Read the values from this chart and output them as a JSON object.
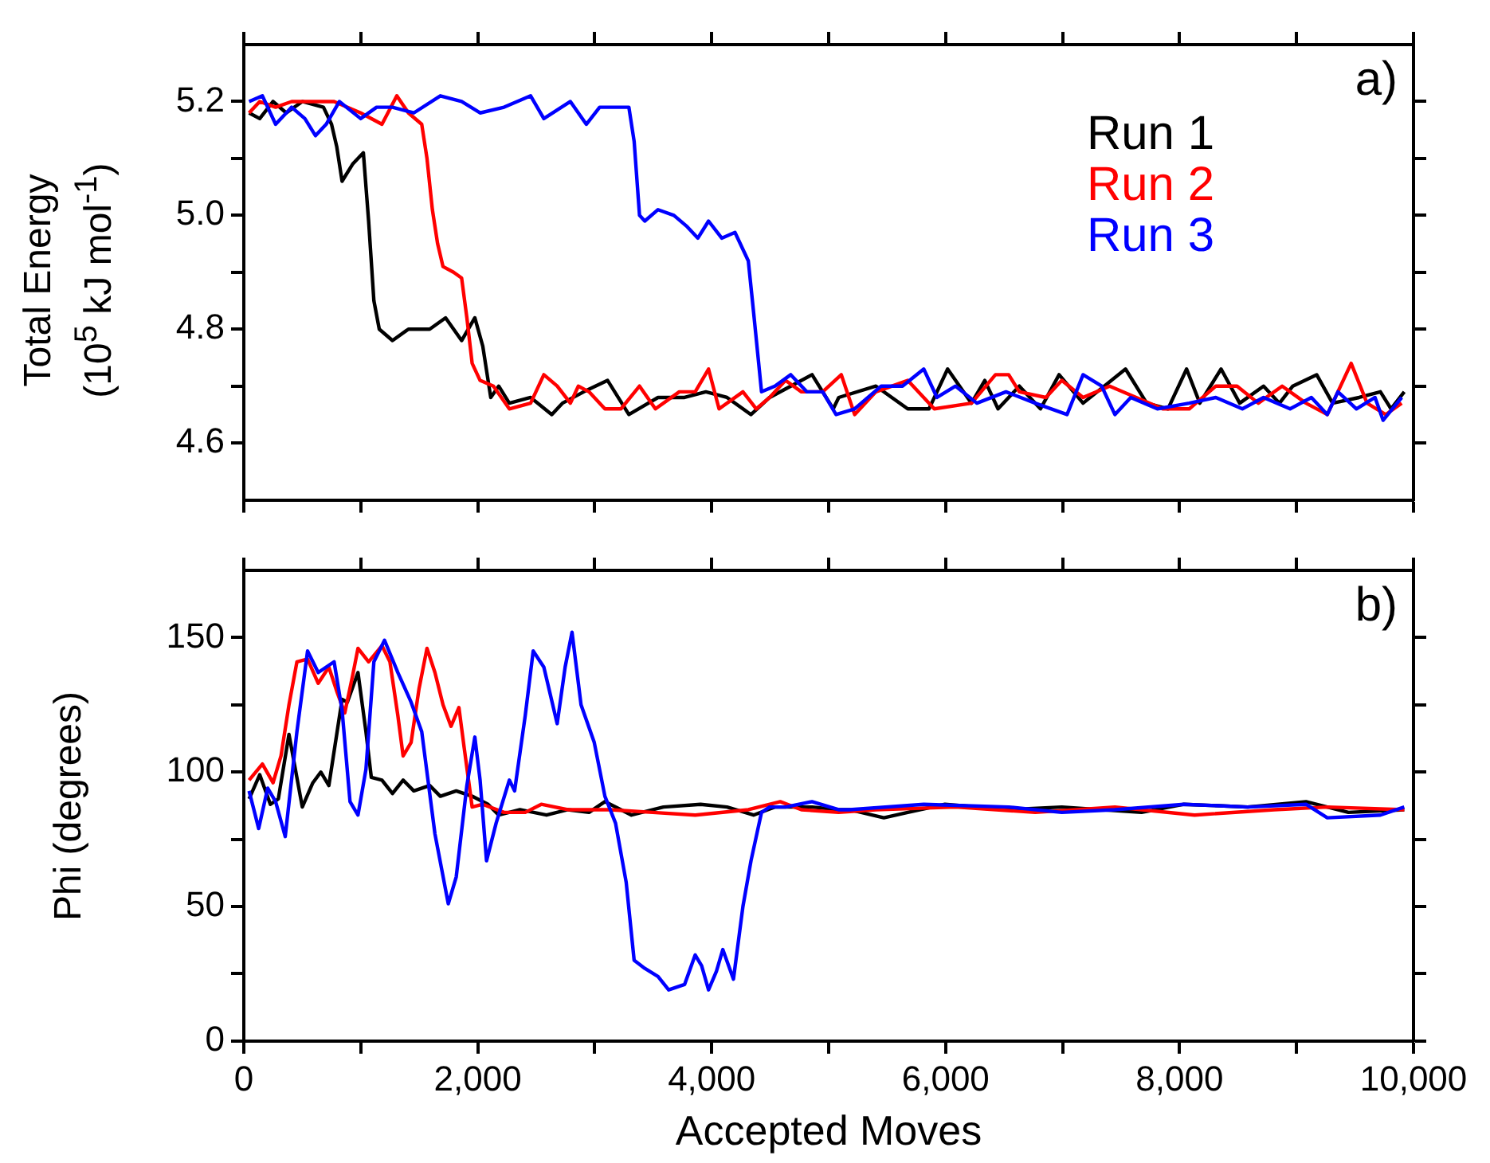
{
  "chart_data": [
    {
      "type": "line",
      "ylabel": "Total Energy\n(10$^{5}$ kJ mol$^{-1}$)",
      "annotations": [
        "a)"
      ],
      "legend": "top right",
      "marker": "none",
      "line_style": "solid",
      "grid": false,
      "tick_labels": "y",
      "xlim": [
        0,
        10000
      ],
      "xticks": [
        {
          "value": 0,
          "label": null
        },
        {
          "value": 1000,
          "label": null
        },
        {
          "value": 2000,
          "label": null
        },
        {
          "value": 3000,
          "label": null
        },
        {
          "value": 4000,
          "label": null
        },
        {
          "value": 5000,
          "label": null
        },
        {
          "value": 6000,
          "label": null
        },
        {
          "value": 7000,
          "label": null
        },
        {
          "value": 8000,
          "label": null
        },
        {
          "value": 9000,
          "label": null
        },
        {
          "value": 10000,
          "label": null
        }
      ],
      "ylim": [
        4.5,
        5.3
      ],
      "yticks": [
        4.6,
        {
          "value": 4.7,
          "label": null
        },
        4.8,
        {
          "value": 4.9,
          "label": null
        },
        {
          "value": 5,
          "label": "5.0"
        },
        {
          "value": 5.1,
          "label": null
        },
        5.2
      ],
      "series": [
        {
          "name": "Run 1",
          "color": "#000000",
          "x": [
            45,
            136,
            250,
            363,
            500,
            681,
            750,
            795,
            840,
            930,
            1022,
            1067,
            1112,
            1158,
            1271,
            1407,
            1589,
            1725,
            1862,
            1975,
            2043,
            2111,
            2179,
            2270,
            2452,
            2633,
            2724,
            2906,
            3110,
            3292,
            3541,
            3768,
            3950,
            4131,
            4336,
            4495,
            4676,
            4858,
            5039,
            5086,
            5404,
            5676,
            5858,
            6017,
            6221,
            6335,
            6448,
            6630,
            6811,
            6970,
            7175,
            7538,
            7719,
            7901,
            8060,
            8173,
            8355,
            8514,
            8718,
            8854,
            8968,
            9172,
            9308,
            9535,
            9717,
            9808,
            9921
          ],
          "values": [
            5.18,
            5.17,
            5.2,
            5.18,
            5.2,
            5.19,
            5.16,
            5.12,
            5.06,
            5.09,
            5.11,
            4.99,
            4.85,
            4.8,
            4.78,
            4.8,
            4.8,
            4.82,
            4.78,
            4.82,
            4.77,
            4.68,
            4.7,
            4.67,
            4.68,
            4.65,
            4.67,
            4.69,
            4.71,
            4.65,
            4.68,
            4.68,
            4.69,
            4.68,
            4.65,
            4.68,
            4.7,
            4.72,
            4.66,
            4.68,
            4.7,
            4.66,
            4.66,
            4.73,
            4.67,
            4.71,
            4.66,
            4.7,
            4.66,
            4.72,
            4.67,
            4.73,
            4.67,
            4.66,
            4.73,
            4.67,
            4.73,
            4.67,
            4.7,
            4.67,
            4.7,
            4.72,
            4.67,
            4.68,
            4.69,
            4.66,
            4.69
          ]
        },
        {
          "name": "Run 2",
          "color": "#ff0000",
          "x": [
            45,
            136,
            272,
            409,
            636,
            772,
            999,
            1181,
            1308,
            1407,
            1521,
            1566,
            1612,
            1657,
            1703,
            1793,
            1862,
            1907,
            1952,
            2020,
            2134,
            2270,
            2452,
            2565,
            2679,
            2792,
            2860,
            2951,
            3087,
            3224,
            3383,
            3519,
            3723,
            3859,
            3973,
            4063,
            4267,
            4381,
            4495,
            4631,
            4767,
            4949,
            5108,
            5222,
            5404,
            5676,
            5903,
            6221,
            6426,
            6539,
            6630,
            6857,
            6993,
            7175,
            7402,
            7629,
            7856,
            8083,
            8310,
            8491,
            8673,
            8877,
            9081,
            9263,
            9467,
            9603,
            9762,
            9899
          ],
          "values": [
            5.18,
            5.2,
            5.19,
            5.2,
            5.2,
            5.2,
            5.18,
            5.16,
            5.21,
            5.18,
            5.16,
            5.1,
            5.01,
            4.95,
            4.91,
            4.9,
            4.89,
            4.82,
            4.74,
            4.71,
            4.7,
            4.66,
            4.67,
            4.72,
            4.7,
            4.67,
            4.7,
            4.69,
            4.66,
            4.66,
            4.7,
            4.66,
            4.69,
            4.69,
            4.73,
            4.66,
            4.69,
            4.66,
            4.68,
            4.71,
            4.69,
            4.69,
            4.72,
            4.65,
            4.69,
            4.71,
            4.66,
            4.67,
            4.72,
            4.72,
            4.69,
            4.68,
            4.71,
            4.68,
            4.7,
            4.68,
            4.66,
            4.66,
            4.7,
            4.7,
            4.67,
            4.7,
            4.67,
            4.65,
            4.74,
            4.67,
            4.65,
            4.67
          ]
        },
        {
          "name": "Run 3",
          "color": "#0000ff",
          "x": [
            45,
            159,
            272,
            409,
            522,
            613,
            704,
            817,
            999,
            1135,
            1271,
            1453,
            1680,
            1862,
            2020,
            2225,
            2452,
            2565,
            2792,
            2928,
            3042,
            3178,
            3292,
            3337,
            3383,
            3428,
            3541,
            3677,
            3791,
            3882,
            3973,
            4086,
            4199,
            4313,
            4358,
            4426,
            4540,
            4676,
            4813,
            4949,
            5063,
            5222,
            5449,
            5631,
            5813,
            5926,
            6085,
            6267,
            6516,
            6766,
            7038,
            7175,
            7334,
            7447,
            7583,
            7810,
            8083,
            8310,
            8537,
            8718,
            8945,
            9127,
            9263,
            9354,
            9512,
            9671,
            9740,
            9899
          ],
          "values": [
            5.2,
            5.21,
            5.16,
            5.19,
            5.17,
            5.14,
            5.16,
            5.2,
            5.17,
            5.19,
            5.19,
            5.18,
            5.21,
            5.2,
            5.18,
            5.19,
            5.21,
            5.17,
            5.2,
            5.16,
            5.19,
            5.19,
            5.19,
            5.13,
            5,
            4.99,
            5.01,
            5,
            4.98,
            4.96,
            4.99,
            4.96,
            4.97,
            4.92,
            4.83,
            4.69,
            4.7,
            4.72,
            4.69,
            4.69,
            4.65,
            4.66,
            4.7,
            4.7,
            4.73,
            4.68,
            4.7,
            4.67,
            4.69,
            4.67,
            4.65,
            4.72,
            4.7,
            4.65,
            4.68,
            4.66,
            4.67,
            4.68,
            4.66,
            4.68,
            4.66,
            4.68,
            4.65,
            4.69,
            4.66,
            4.68,
            4.64,
            4.68
          ]
        }
      ]
    },
    {
      "type": "line",
      "xlabel": "Accepted Moves",
      "ylabel": "Phi (degrees)",
      "annotations": [
        "b)"
      ],
      "marker": "none",
      "line_style": "solid",
      "grid": false,
      "xlim": [
        0,
        10000
      ],
      "xticks": [
        0,
        {
          "value": 1000,
          "label": null
        },
        {
          "value": 2000,
          "label": "2,000"
        },
        {
          "value": 3000,
          "label": null
        },
        {
          "value": 4000,
          "label": "4,000"
        },
        {
          "value": 5000,
          "label": null
        },
        {
          "value": 6000,
          "label": "6,000"
        },
        {
          "value": 7000,
          "label": null
        },
        {
          "value": 8000,
          "label": "8,000"
        },
        {
          "value": 9000,
          "label": null
        },
        {
          "value": 10000,
          "label": "10,000"
        }
      ],
      "ylim": [
        0,
        175
      ],
      "yticks": [
        0,
        {
          "value": 25,
          "label": null
        },
        50,
        {
          "value": 75,
          "label": null
        },
        100,
        {
          "value": 125,
          "label": null
        },
        150
      ],
      "series": [
        {
          "color": "#000000",
          "x": [
            45,
            136,
            227,
            295,
            386,
            500,
            590,
            658,
            727,
            840,
            885,
            976,
            1044,
            1090,
            1181,
            1271,
            1362,
            1453,
            1589,
            1680,
            1816,
            1952,
            2088,
            2179,
            2361,
            2588,
            2770,
            2951,
            3087,
            3314,
            3587,
            3905,
            4131,
            4358,
            4540,
            4858,
            5085,
            5177,
            5472,
            5676,
            5994,
            6539,
            6993,
            7674,
            8037,
            8582,
            9081,
            9444,
            9921
          ],
          "values": [
            90,
            99,
            88,
            90,
            114,
            87,
            96,
            100,
            95,
            127,
            126,
            137,
            115,
            98,
            97,
            92,
            97,
            93,
            95,
            91,
            93,
            91,
            88,
            84,
            86,
            84,
            86,
            85,
            89,
            84,
            87,
            88,
            87,
            84,
            87,
            87,
            86,
            86,
            83,
            85,
            88,
            86,
            87,
            85,
            88,
            87,
            89,
            85,
            86
          ]
        },
        {
          "color": "#ff0000",
          "x": [
            45,
            159,
            250,
            318,
            386,
            454,
            545,
            636,
            727,
            795,
            863,
            931,
            976,
            1067,
            1181,
            1249,
            1317,
            1362,
            1430,
            1498,
            1566,
            1634,
            1703,
            1771,
            1839,
            1884,
            1952,
            2043,
            2225,
            2406,
            2543,
            2770,
            3133,
            3496,
            3859,
            4313,
            4586,
            4767,
            5085,
            5404,
            6085,
            6766,
            7447,
            8128,
            8809,
            9263,
            9921
          ],
          "values": [
            97,
            103,
            96,
            106,
            125,
            141,
            142,
            133,
            139,
            130,
            122,
            136,
            146,
            141,
            147,
            141,
            121,
            106,
            111,
            131,
            146,
            137,
            125,
            117,
            124,
            109,
            87,
            88,
            85,
            85,
            88,
            86,
            86,
            85,
            84,
            86,
            89,
            86,
            85,
            86,
            87,
            85,
            87,
            84,
            86,
            87,
            86
          ]
        },
        {
          "color": "#0000ff",
          "x": [
            45,
            127,
            204,
            272,
            354,
            454,
            545,
            636,
            772,
            840,
            908,
            976,
            1044,
            1112,
            1203,
            1317,
            1430,
            1521,
            1634,
            1748,
            1816,
            1907,
            1975,
            2020,
            2075,
            2157,
            2270,
            2315,
            2406,
            2474,
            2565,
            2679,
            2747,
            2806,
            2883,
            2996,
            3087,
            3178,
            3269,
            3337,
            3428,
            3541,
            3632,
            3768,
            3859,
            3914,
            3973,
            4041,
            4095,
            4186,
            4267,
            4336,
            4426,
            4495,
            4631,
            4858,
            5085,
            5177,
            5813,
            6539,
            6993,
            7447,
            8037,
            8582,
            9081,
            9263,
            9717,
            9921
          ],
          "values": [
            93,
            79,
            94,
            89,
            76,
            115,
            145,
            137,
            141,
            123,
            89,
            84,
            101,
            141,
            149,
            137,
            126,
            115,
            77,
            51,
            61,
            95,
            113,
            97,
            67,
            81,
            97,
            93,
            121,
            145,
            139,
            118,
            139,
            152,
            125,
            111,
            91,
            81,
            59,
            30,
            27,
            24,
            19,
            21,
            32,
            28,
            19,
            26,
            34,
            23,
            50,
            67,
            85,
            87,
            87,
            89,
            86,
            86,
            88,
            87,
            85,
            86,
            88,
            87,
            88,
            83,
            84,
            87
          ]
        }
      ]
    }
  ]
}
